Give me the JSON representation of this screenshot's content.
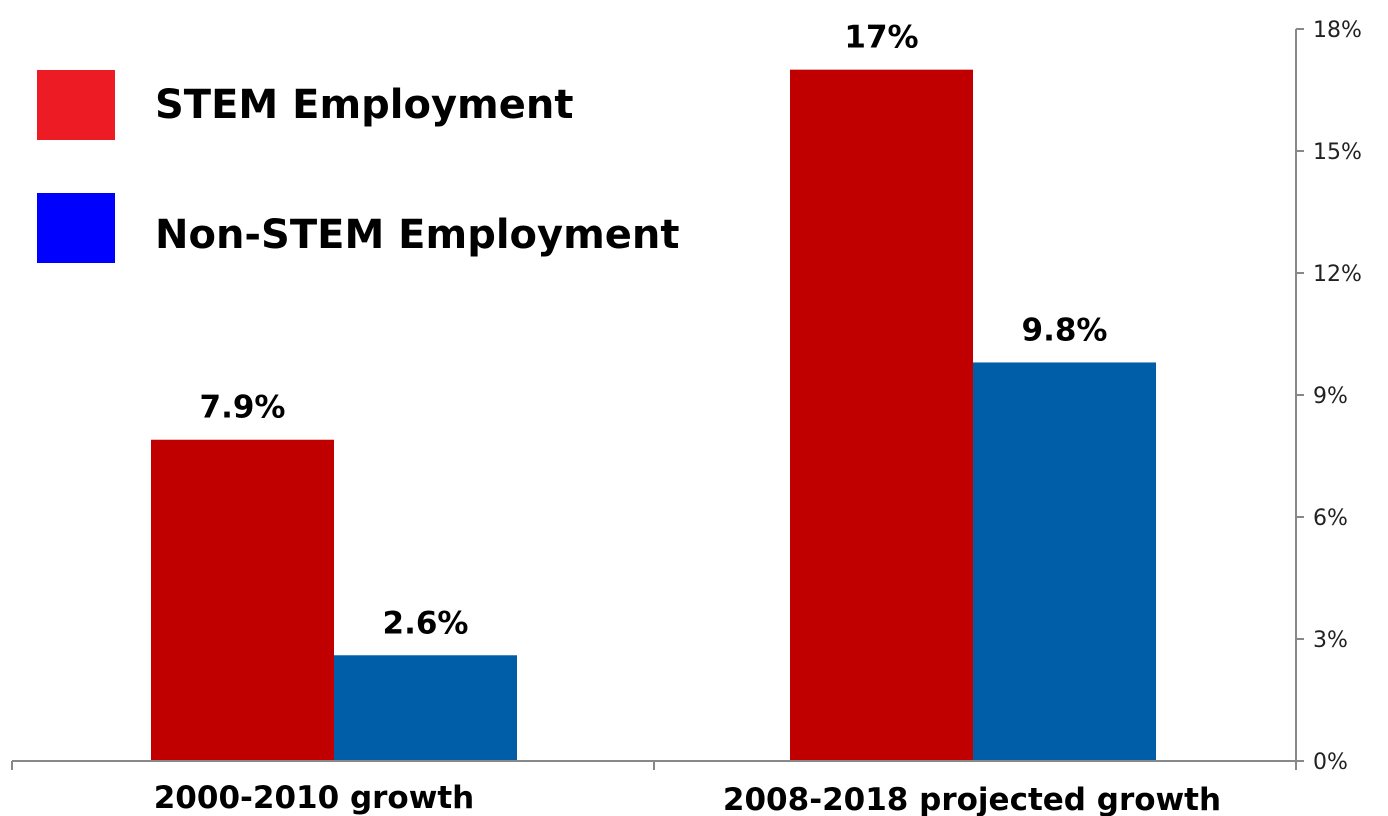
{
  "chart_data": {
    "type": "bar",
    "title": "",
    "xlabel": "",
    "ylabel": "",
    "categories": [
      "2000-2010 growth",
      "2008-2018 projected growth"
    ],
    "series": [
      {
        "name": "STEM Employment",
        "values": [
          7.9,
          17
        ],
        "data_labels": [
          "7.9%",
          "17%"
        ],
        "color": "#c00000",
        "legend_color": "#ed1c24"
      },
      {
        "name": "Non-STEM Employment",
        "values": [
          2.6,
          9.8
        ],
        "data_labels": [
          "2.6%",
          "9.8%"
        ],
        "color": "#005ea8",
        "legend_color": "#0000ff"
      }
    ],
    "ylim": [
      0,
      18
    ],
    "y_ticks": [
      0,
      3,
      6,
      9,
      12,
      15,
      18
    ],
    "y_tick_labels": [
      "0%",
      "3%",
      "6%",
      "9%",
      "12%",
      "15%",
      "18%"
    ],
    "y_axis_position": "right",
    "grid": false,
    "legend_position": "top-left"
  }
}
